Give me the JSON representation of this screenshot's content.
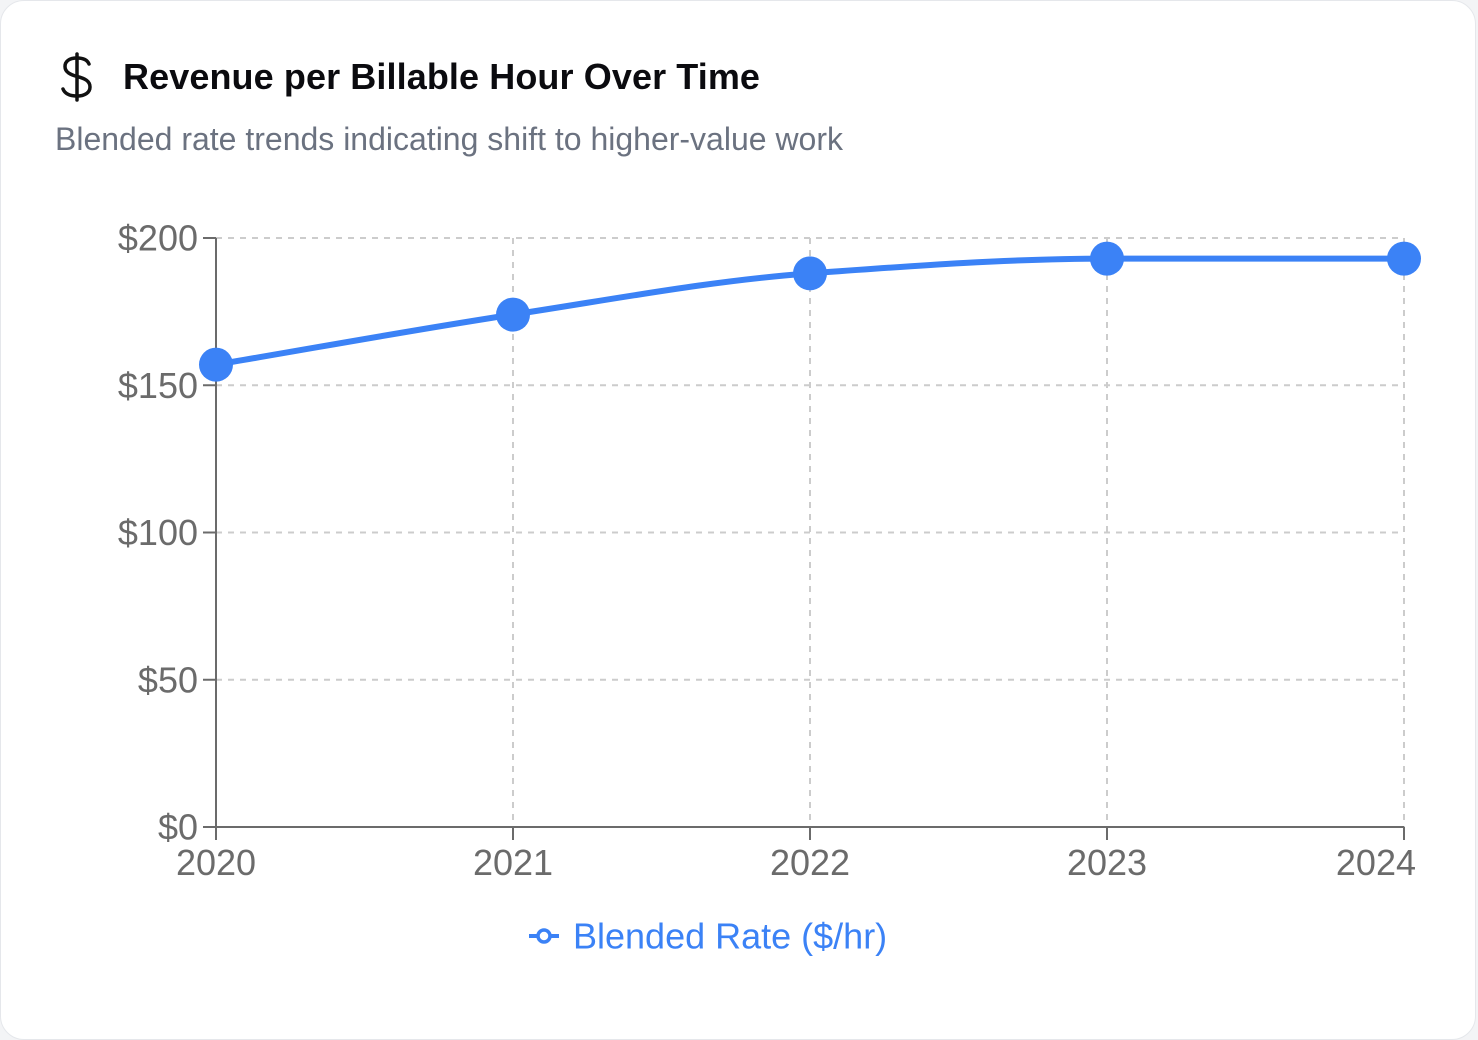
{
  "header": {
    "icon": "dollar-icon",
    "title": "Revenue per Billable Hour Over Time",
    "subtitle": "Blended rate trends indicating shift to higher-value work"
  },
  "colors": {
    "series": "#3b82f6",
    "axis": "#6b6b6b",
    "grid": "#cccccc"
  },
  "chart_data": {
    "type": "line",
    "title": "",
    "xlabel": "",
    "ylabel": "",
    "x": [
      "2020",
      "2021",
      "2022",
      "2023",
      "2024"
    ],
    "series": [
      {
        "name": "Blended Rate ($/hr)",
        "values": [
          157,
          174,
          188,
          193,
          193
        ]
      }
    ],
    "ylim": [
      0,
      200
    ],
    "yticks": [
      0,
      50,
      100,
      150,
      200
    ],
    "ytick_labels": [
      "$0",
      "$50",
      "$100",
      "$150",
      "$200"
    ],
    "grid": true,
    "grid_style": "dashed",
    "curve": "monotone",
    "legend_position": "bottom-center"
  }
}
